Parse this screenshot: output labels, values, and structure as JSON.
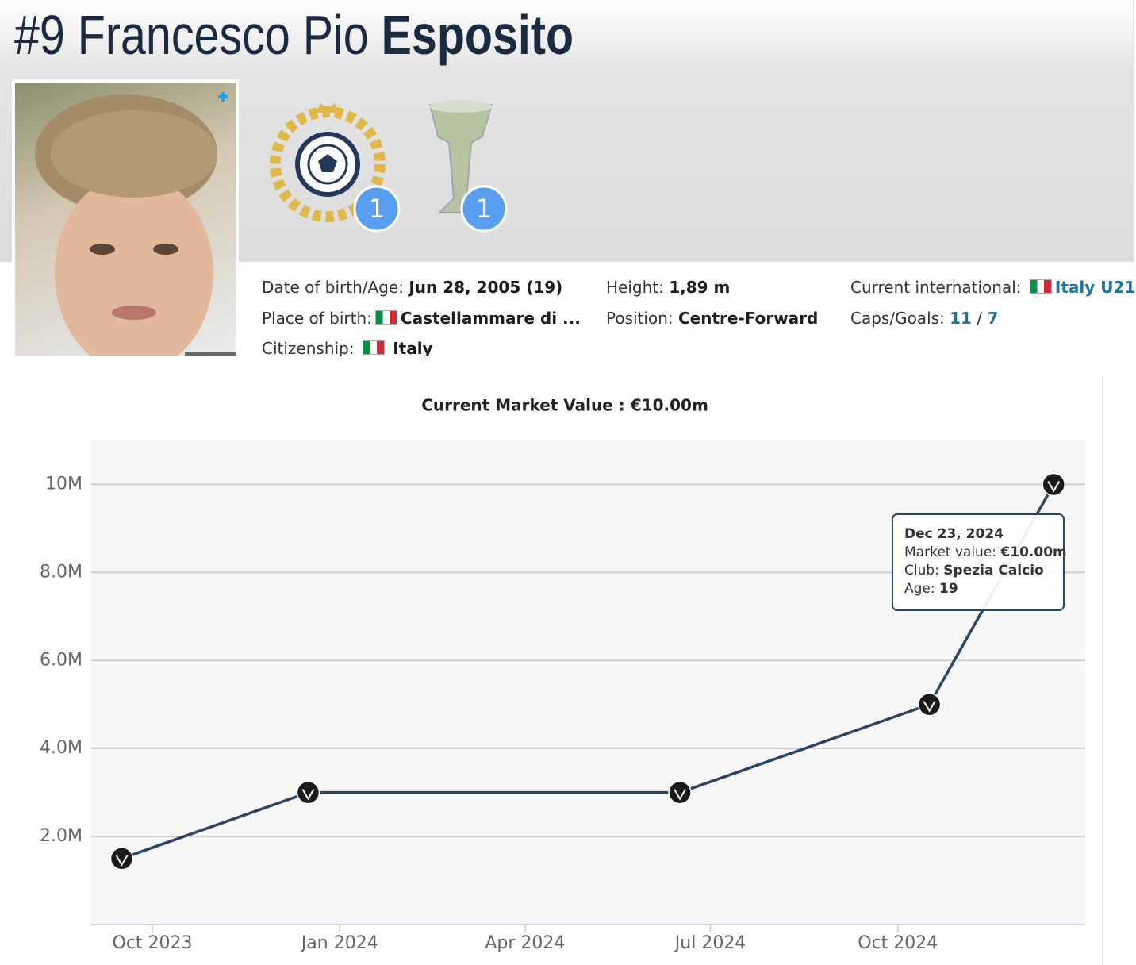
{
  "header": {
    "number": "#9",
    "first_name": "Francesco Pio",
    "last_name": "Esposito"
  },
  "awards": [
    {
      "count": 1
    },
    {
      "count": 1
    }
  ],
  "info": {
    "date_of_birth": {
      "label": "Date of birth/Age:",
      "value": "Jun 28, 2005 (19)"
    },
    "place_of_birth": {
      "label": "Place of birth:",
      "value": "Castellammare di ..."
    },
    "citizenship": {
      "label": "Citizenship:",
      "value": "Italy"
    },
    "height": {
      "label": "Height:",
      "value": "1,89 m"
    },
    "position": {
      "label": "Position:",
      "value": "Centre-Forward"
    },
    "international": {
      "label": "Current international:",
      "value": "Italy U21"
    },
    "caps_goals": {
      "label": "Caps/Goals:",
      "caps": 11,
      "separator": "/",
      "goals": 7
    }
  },
  "chart_data": {
    "type": "line",
    "title": "Current Market Value : €10.00m",
    "x": [
      "2023-09",
      "2023-12",
      "2024-06",
      "2024-10",
      "2024-12"
    ],
    "xlim": [
      "2023-09",
      "2024-12"
    ],
    "xticks": [
      {
        "value": "2023-10",
        "label": "Oct 2023"
      },
      {
        "value": "2024-01",
        "label": "Jan 2024"
      },
      {
        "value": "2024-04",
        "label": "Apr 2024"
      },
      {
        "value": "2024-07",
        "label": "Jul 2024"
      },
      {
        "value": "2024-10",
        "label": "Oct 2024"
      }
    ],
    "series": [
      {
        "name": "Market value",
        "color": "#2d4565",
        "values": [
          1.5,
          3,
          3,
          5,
          10
        ]
      }
    ],
    "ylim": [
      0,
      11
    ],
    "yticks": [
      {
        "value": 2,
        "label": "2.0M"
      },
      {
        "value": 4,
        "label": "4.0M"
      },
      {
        "value": 6,
        "label": "6.0M"
      },
      {
        "value": 8,
        "label": "8.0M"
      },
      {
        "value": 10,
        "label": "10M"
      }
    ],
    "grid": true,
    "tooltip": {
      "date": "Dec 23, 2024",
      "rows": [
        {
          "label": "Market value:",
          "value": "€10.00m"
        },
        {
          "label": "Club:",
          "value": "Spezia Calcio"
        },
        {
          "label": "Age:",
          "value": 19
        }
      ]
    }
  }
}
